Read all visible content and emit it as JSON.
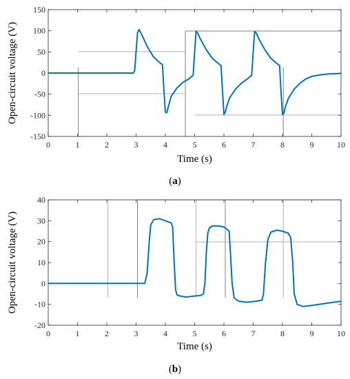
{
  "chart_data": [
    {
      "type": "line",
      "panel_label": "a",
      "xlabel": "Time (s)",
      "ylabel": "Open-circuit voltage (V)",
      "xlim": [
        0,
        10
      ],
      "ylim": [
        -150,
        150
      ],
      "xticks": [
        0,
        1,
        2,
        3,
        4,
        5,
        6,
        7,
        8,
        9,
        10
      ],
      "yticks": [
        -150,
        -100,
        -50,
        0,
        50,
        100,
        150
      ],
      "grid": false,
      "line_color": "#0072bd",
      "series": [
        {
          "x": [
            0,
            2.9,
            2.95,
            3.0,
            3.05,
            3.1,
            3.2,
            3.4,
            3.6,
            3.8,
            3.9,
            3.95,
            4.0,
            4.05,
            4.1,
            4.2,
            4.4,
            4.6,
            4.8,
            4.95,
            5.0,
            5.05,
            5.1,
            5.2,
            5.4,
            5.6,
            5.8,
            5.9,
            5.95,
            6.0,
            6.05,
            6.1,
            6.2,
            6.4,
            6.6,
            6.8,
            6.95,
            7.0,
            7.05,
            7.1,
            7.2,
            7.4,
            7.6,
            7.8,
            7.9,
            7.95,
            8.0,
            8.05,
            8.1,
            8.2,
            8.4,
            8.6,
            8.8,
            9.0,
            9.3,
            9.6,
            10.0
          ],
          "y": [
            0,
            0,
            5,
            50,
            95,
            103,
            90,
            60,
            38,
            25,
            20,
            -40,
            -92,
            -94,
            -80,
            -55,
            -35,
            -22,
            -14,
            -5,
            50,
            99,
            95,
            80,
            55,
            35,
            23,
            18,
            -40,
            -98,
            -92,
            -78,
            -58,
            -38,
            -24,
            -14,
            -5,
            50,
            98,
            95,
            80,
            55,
            35,
            23,
            18,
            -45,
            -98,
            -95,
            -80,
            -60,
            -38,
            -24,
            -14,
            -8,
            -4,
            -2,
            -1
          ]
        }
      ]
    },
    {
      "type": "line",
      "panel_label": "b",
      "xlabel": "Time (s)",
      "ylabel": "Open-circuit voltage (V)",
      "xlim": [
        0,
        10
      ],
      "ylim": [
        -20,
        40
      ],
      "xticks": [
        0,
        1,
        2,
        3,
        4,
        5,
        6,
        7,
        8,
        9,
        10
      ],
      "yticks": [
        -20,
        -10,
        0,
        10,
        20,
        30,
        40
      ],
      "grid": false,
      "line_color": "#0072bd",
      "series": [
        {
          "x": [
            0,
            3.3,
            3.38,
            3.45,
            3.5,
            3.6,
            3.8,
            4.0,
            4.1,
            4.2,
            4.25,
            4.3,
            4.35,
            4.4,
            4.5,
            4.7,
            5.0,
            5.2,
            5.3,
            5.35,
            5.4,
            5.45,
            5.5,
            5.6,
            5.8,
            6.0,
            6.1,
            6.18,
            6.22,
            6.28,
            6.35,
            6.5,
            6.8,
            7.1,
            7.3,
            7.35,
            7.42,
            7.5,
            7.6,
            7.8,
            8.0,
            8.2,
            8.28,
            8.35,
            8.4,
            8.5,
            8.7,
            9.0,
            9.5,
            10.0
          ],
          "y": [
            0,
            0,
            5,
            20,
            28,
            30.5,
            31,
            30,
            29.5,
            29,
            27,
            10,
            -3,
            -5.5,
            -6,
            -6.5,
            -6,
            -5.8,
            -5,
            0,
            15,
            24,
            26.5,
            27.5,
            27.5,
            27,
            26,
            25,
            15,
            0,
            -7,
            -8.5,
            -9,
            -8.5,
            -8,
            -5,
            10,
            21,
            24.5,
            25.5,
            25,
            24,
            22,
            10,
            -5,
            -10,
            -11,
            -10.5,
            -9.5,
            -8.5
          ]
        }
      ]
    }
  ]
}
